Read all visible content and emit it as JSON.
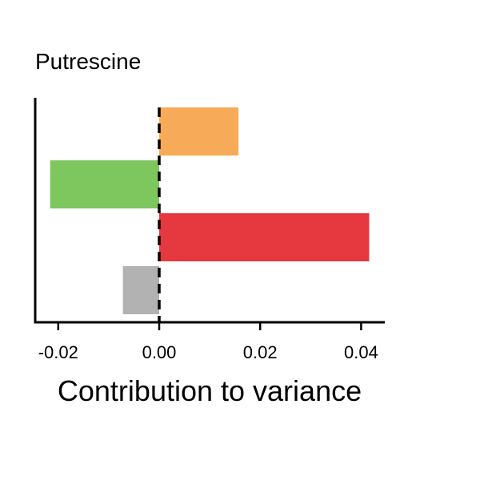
{
  "chart_data": {
    "type": "bar",
    "orientation": "horizontal",
    "title": "Putrescine",
    "xlabel": "Contribution to variance",
    "ylabel": "",
    "xlim": [
      -0.025,
      0.045
    ],
    "xticks": [
      -0.02,
      0.0,
      0.02,
      0.04
    ],
    "xtick_labels": [
      "-0.02",
      "0.00",
      "0.02",
      "0.04"
    ],
    "reference_line": {
      "x": 0.0,
      "style": "dashed"
    },
    "grid": false,
    "legend": "none",
    "bars": [
      {
        "value": 0.0157,
        "color": "#F7AA58"
      },
      {
        "value": -0.0216,
        "color": "#7EC65E"
      },
      {
        "value": 0.0416,
        "color": "#E6383F"
      },
      {
        "value": -0.0072,
        "color": "#B2B2B2"
      }
    ]
  }
}
